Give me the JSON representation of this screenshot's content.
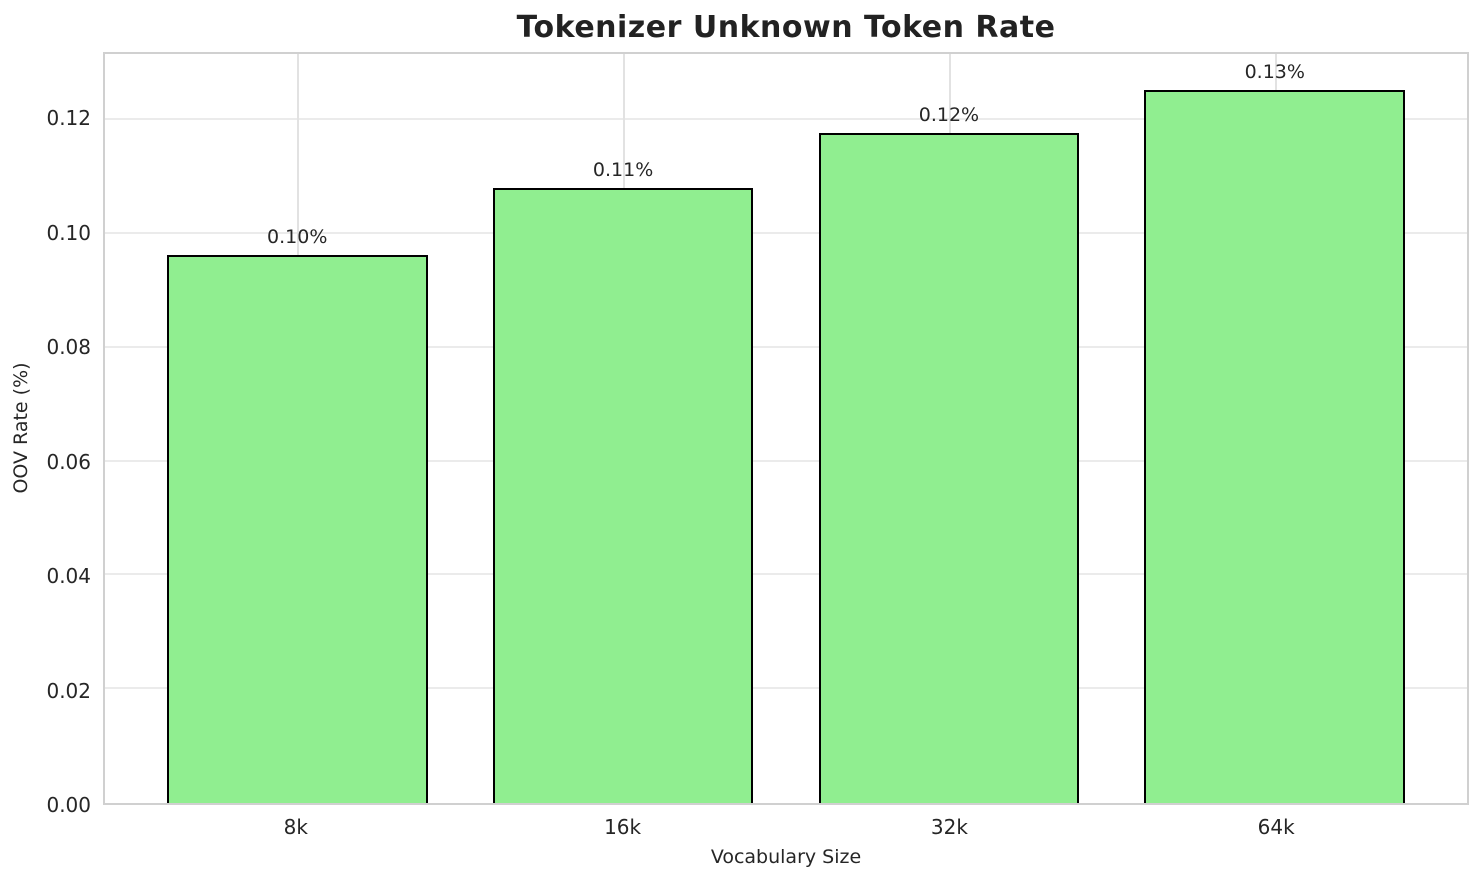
{
  "chart_data": {
    "type": "bar",
    "title": "Tokenizer Unknown Token Rate",
    "xlabel": "Vocabulary Size",
    "ylabel": "OOV Rate (%)",
    "categories": [
      "8k",
      "16k",
      "32k",
      "64k"
    ],
    "values": [
      0.0962,
      0.108,
      0.1177,
      0.1252
    ],
    "bar_labels": [
      "0.10%",
      "0.11%",
      "0.12%",
      "0.13%"
    ],
    "yticks": [
      0.0,
      0.02,
      0.04,
      0.06,
      0.08,
      0.1,
      0.12
    ],
    "ytick_labels": [
      "0.00",
      "0.02",
      "0.04",
      "0.06",
      "0.08",
      "0.10",
      "0.12"
    ],
    "ylim": [
      0,
      0.1316
    ],
    "grid": true,
    "legend": "none",
    "bar_width_fraction": 0.8,
    "axis_margin_fraction": 0.59,
    "colors": {
      "bar_fill": "#90ee90",
      "bar_edge": "#000000",
      "gridline": "#ebebeb",
      "spine": "#d0d0d0",
      "text": "#262626",
      "title": "#222222",
      "background": "#ffffff"
    }
  }
}
